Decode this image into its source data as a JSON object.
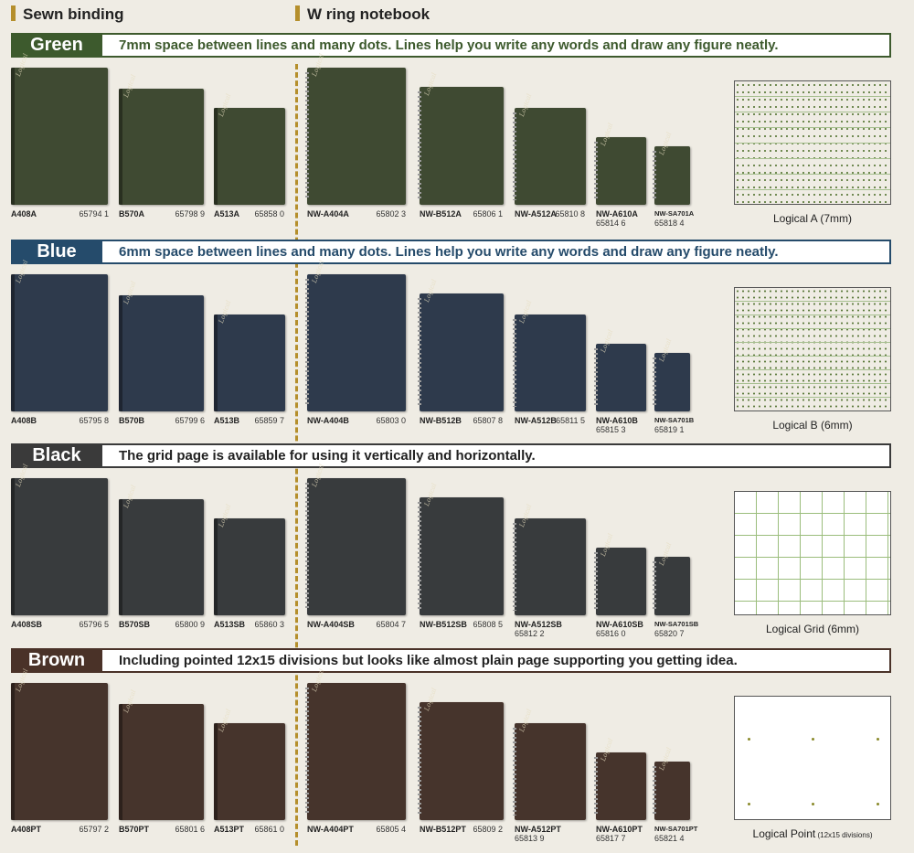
{
  "headers": {
    "sewn": "Sewn binding",
    "ring": "W ring notebook"
  },
  "sections": [
    {
      "tag": "Green",
      "description": "7mm space between lines and many dots. Lines help you write any words and draw any figure neatly.",
      "sample_caption": "Logical A (7mm)",
      "sample_caption_small": "",
      "items": [
        {
          "code": "A408A",
          "num": "65794 1"
        },
        {
          "code": "B570A",
          "num": "65798 9"
        },
        {
          "code": "A513A",
          "num": "65858 0"
        },
        {
          "code": "NW-A404A",
          "num": "65802 3"
        },
        {
          "code": "NW-B512A",
          "num": "65806 1"
        },
        {
          "code": "NW-A512A",
          "num": "65810 8"
        },
        {
          "code": "NW-A610A",
          "num": "65814 6"
        },
        {
          "code": "NW-SA701A",
          "num": "65818 4"
        }
      ]
    },
    {
      "tag": "Blue",
      "description": "6mm space between lines and many dots. Lines help you write any words and draw any figure neatly.",
      "sample_caption": "Logical B (6mm)",
      "sample_caption_small": "",
      "items": [
        {
          "code": "A408B",
          "num": "65795 8"
        },
        {
          "code": "B570B",
          "num": "65799 6"
        },
        {
          "code": "A513B",
          "num": "65859 7"
        },
        {
          "code": "NW-A404B",
          "num": "65803 0"
        },
        {
          "code": "NW-B512B",
          "num": "65807 8"
        },
        {
          "code": "NW-A512B",
          "num": "65811 5"
        },
        {
          "code": "NW-A610B",
          "num": "65815 3"
        },
        {
          "code": "NW-SA701B",
          "num": "65819 1"
        }
      ]
    },
    {
      "tag": "Black",
      "description": "The grid page is available for using it vertically and horizontally.",
      "sample_caption": "Logical Grid (6mm)",
      "sample_caption_small": "",
      "items": [
        {
          "code": "A408SB",
          "num": "65796 5"
        },
        {
          "code": "B570SB",
          "num": "65800 9"
        },
        {
          "code": "A513SB",
          "num": "65860 3"
        },
        {
          "code": "NW-A404SB",
          "num": "65804 7"
        },
        {
          "code": "NW-B512SB",
          "num": "65808 5"
        },
        {
          "code": "NW-A512SB",
          "num": "65812 2"
        },
        {
          "code": "NW-A610SB",
          "num": "65816 0"
        },
        {
          "code": "NW-SA701SB",
          "num": "65820 7"
        }
      ]
    },
    {
      "tag": "Brown",
      "description": "Including pointed 12x15 divisions but looks like almost plain page supporting you getting idea.",
      "sample_caption": "Logical Point",
      "sample_caption_small": "(12x15 divisions)",
      "items": [
        {
          "code": "A408PT",
          "num": "65797 2"
        },
        {
          "code": "B570PT",
          "num": "65801 6"
        },
        {
          "code": "A513PT",
          "num": "65861 0"
        },
        {
          "code": "NW-A404PT",
          "num": "65805 4"
        },
        {
          "code": "NW-B512PT",
          "num": "65809 2"
        },
        {
          "code": "NW-A512PT",
          "num": "65813 9"
        },
        {
          "code": "NW-A610PT",
          "num": "65817 7"
        },
        {
          "code": "NW-SA701PT",
          "num": "65821 4"
        }
      ]
    }
  ],
  "colors": {
    "green_band": "#3d5a2d",
    "green_cover": "#3f4a32",
    "blue_band": "#254b6b",
    "blue_cover": "#2e3a4c",
    "black_band": "#3a3a3a",
    "black_cover": "#383b3d",
    "brown_band": "#4a3228",
    "brown_cover": "#46342c",
    "accent_gold": "#b58f2c"
  }
}
